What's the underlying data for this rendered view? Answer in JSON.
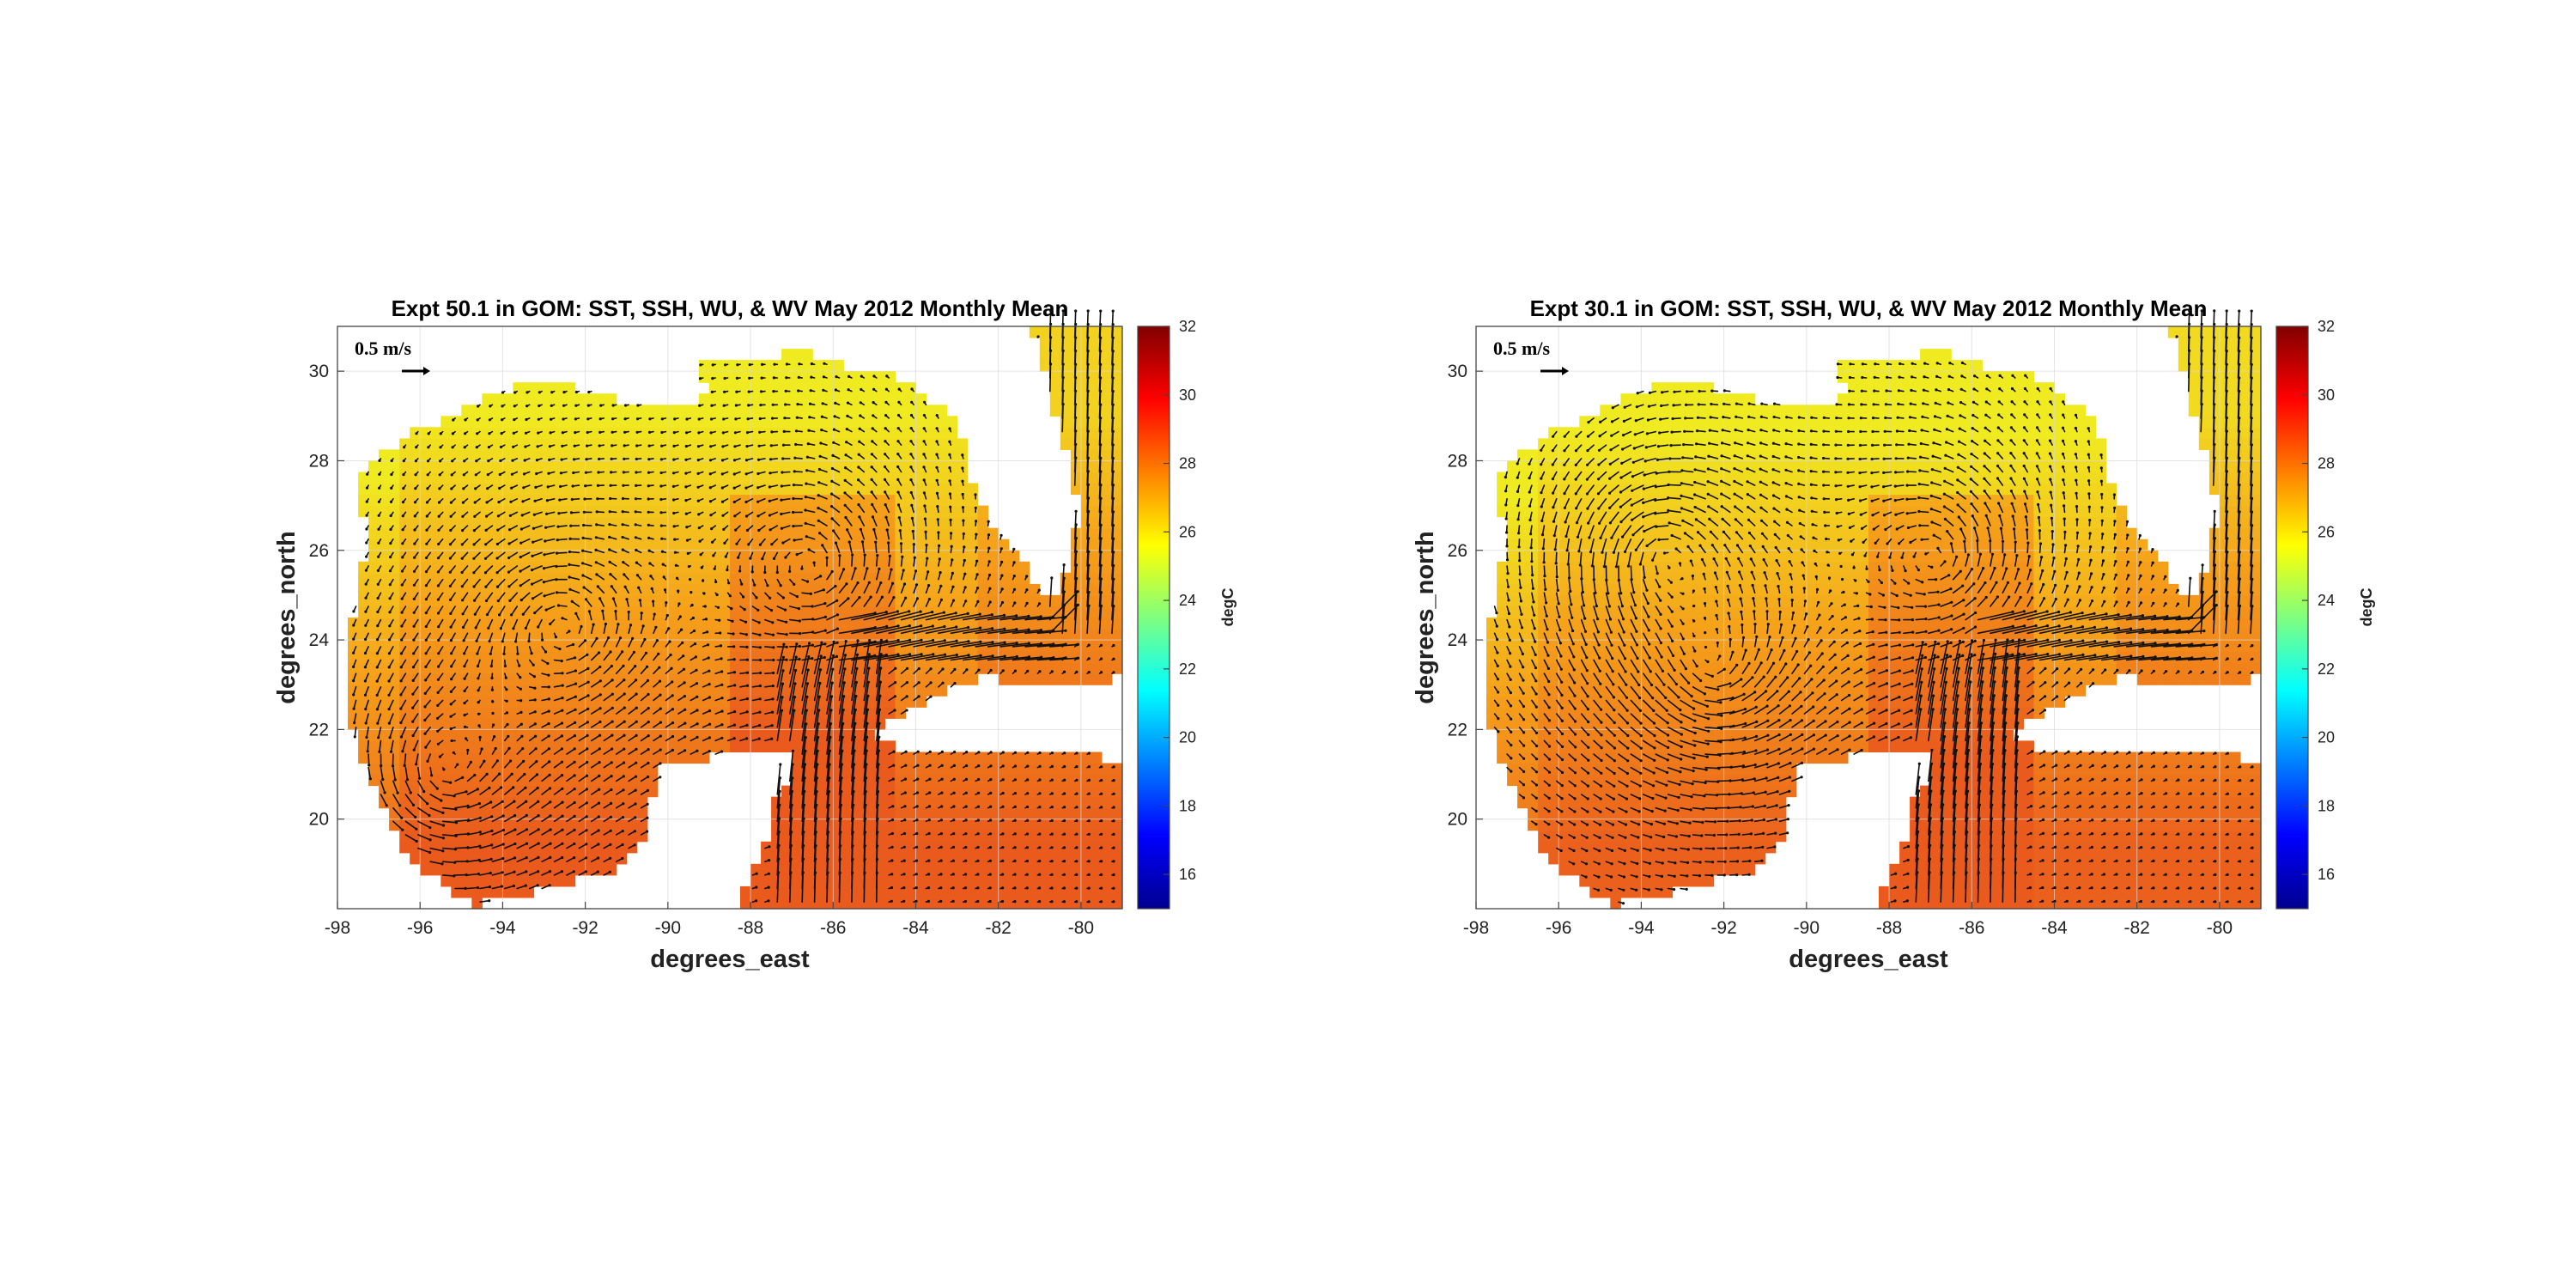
{
  "chart_data": [
    {
      "type": "heatmap",
      "title": "Expt 50.1 in GOM: SST, SSH, WU, & WV May 2012 Monthly Mean",
      "xlabel": "degrees_east",
      "ylabel": "degrees_north",
      "xlim": [
        -98,
        -79
      ],
      "ylim": [
        18,
        31
      ],
      "xticks": [
        "-98",
        "-96",
        "-94",
        "-92",
        "-90",
        "-88",
        "-86",
        "-84",
        "-82",
        "-80"
      ],
      "yticks": [
        "20",
        "22",
        "24",
        "26",
        "28",
        "30"
      ],
      "grid": true,
      "colorbar": {
        "label": "degC",
        "range": [
          15,
          32
        ],
        "ticks": [
          "16",
          "18",
          "20",
          "22",
          "24",
          "26",
          "28",
          "30",
          "32"
        ],
        "colormap": "jet"
      },
      "vector_scale_label": "0.5 m/s",
      "eddies": [
        {
          "lon": -86.5,
          "lat": 25.6,
          "label": "loop-current-eddy"
        },
        {
          "lon": -92.5,
          "lat": 24.3,
          "label": "western-eddy"
        },
        {
          "lon": -95.5,
          "lat": 21.0,
          "label": "southwest-eddy"
        }
      ]
    },
    {
      "type": "heatmap",
      "title": "Expt 30.1 in GOM: SST, SSH, WU, & WV May 2012 Monthly Mean",
      "xlabel": "degrees_east",
      "ylabel": "degrees_north",
      "xlim": [
        -98,
        -79
      ],
      "ylim": [
        18,
        31
      ],
      "xticks": [
        "-98",
        "-96",
        "-94",
        "-92",
        "-90",
        "-88",
        "-86",
        "-84",
        "-82",
        "-80"
      ],
      "yticks": [
        "20",
        "22",
        "24",
        "26",
        "28",
        "30"
      ],
      "grid": true,
      "colorbar": {
        "label": "degC",
        "range": [
          15,
          32
        ],
        "ticks": [
          "16",
          "18",
          "20",
          "22",
          "24",
          "26",
          "28",
          "30",
          "32"
        ],
        "colormap": "jet"
      },
      "vector_scale_label": "0.5 m/s",
      "eddies": [
        {
          "lon": -86.8,
          "lat": 25.8,
          "label": "loop-current-eddy"
        },
        {
          "lon": -93.5,
          "lat": 26.0,
          "label": "northwest-eddy"
        },
        {
          "lon": -92.3,
          "lat": 23.2,
          "label": "central-eddy"
        }
      ]
    }
  ],
  "colors": {
    "land": "#ffffff",
    "vectors": "#111111",
    "grid": "#d9d9d9",
    "sst_warm": "#ea5a1c",
    "sst_mid": "#f6a11a",
    "sst_cool": "#f0ea20"
  }
}
